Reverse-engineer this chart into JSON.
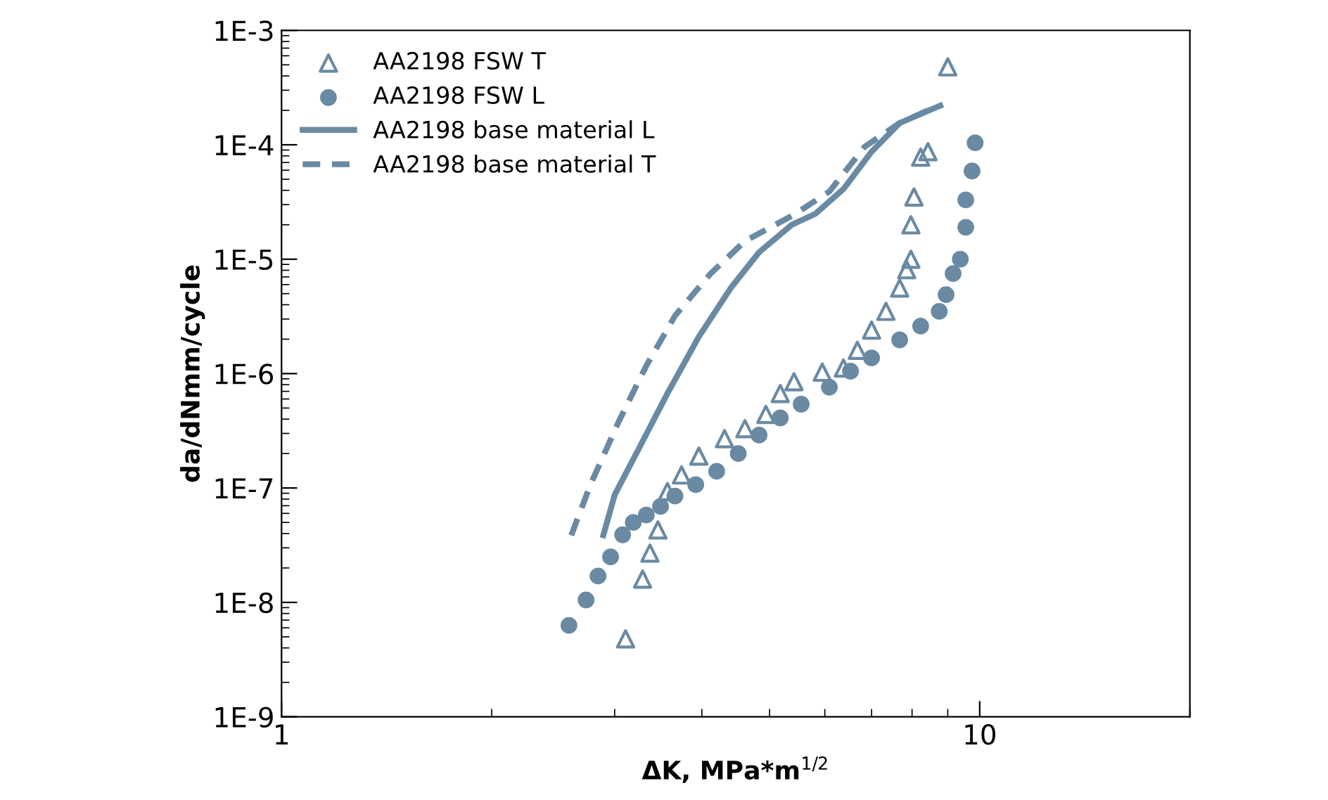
{
  "chart_data": {
    "type": "scatter",
    "xlabel": "ΔK, MPa*m$^{1/2}$",
    "ylabel": "da/dNmm/cycle",
    "log": "xy",
    "grid": false,
    "legend": "top left",
    "xlim": [
      1,
      20
    ],
    "xticks": [
      1,
      10
    ],
    "ylim": [
      1e-09,
      0.001
    ],
    "yticks": [
      {
        "value": 1e-09,
        "label": "1E-9"
      },
      {
        "value": 1e-08,
        "label": "1E-8"
      },
      {
        "value": 1e-07,
        "label": "1E-7"
      },
      {
        "value": 1e-06,
        "label": "1E-6"
      },
      {
        "value": 1e-05,
        "label": "1E-5"
      },
      {
        "value": 0.0001,
        "label": "1E-4"
      },
      {
        "value": 0.001,
        "label": "1E-3"
      }
    ],
    "series": [
      {
        "name": "AA2198 FSW T",
        "marker": "triangle",
        "color": "#6a8aa3",
        "x": [
          3.11,
          3.29,
          3.37,
          3.46,
          3.57,
          3.74,
          3.96,
          4.31,
          4.61,
          4.94,
          5.18,
          5.42,
          5.95,
          6.38,
          6.68,
          7.0,
          7.34,
          7.68,
          7.86,
          7.97,
          7.97,
          8.05,
          8.23,
          8.43,
          9.0
        ],
        "values": [
          4.8e-09,
          1.6e-08,
          2.7e-08,
          4.3e-08,
          9.3e-08,
          1.3e-07,
          1.9e-07,
          2.7e-07,
          3.3e-07,
          4.4e-07,
          6.7e-07,
          8.5e-07,
          1.03e-06,
          1.12e-06,
          1.6e-06,
          2.4e-06,
          3.5e-06,
          5.6e-06,
          8.1e-06,
          1e-05,
          2e-05,
          3.5e-05,
          7.8e-05,
          8.7e-05,
          0.00048
        ]
      },
      {
        "name": "AA2198 FSW L",
        "marker": "circle",
        "color": "#6a8aa3",
        "x": [
          2.58,
          2.73,
          2.84,
          2.96,
          3.08,
          3.19,
          3.33,
          3.49,
          3.66,
          3.92,
          4.2,
          4.51,
          4.83,
          5.18,
          5.55,
          6.09,
          6.53,
          7.0,
          7.68,
          8.23,
          8.75,
          8.95,
          9.16,
          9.38,
          9.55,
          9.55,
          9.75,
          9.85
        ],
        "values": [
          6.3e-09,
          1.05e-08,
          1.7e-08,
          2.5e-08,
          3.9e-08,
          5e-08,
          5.8e-08,
          6.9e-08,
          8.5e-08,
          1.07e-07,
          1.4e-07,
          2e-07,
          2.9e-07,
          4.1e-07,
          5.4e-07,
          7.6e-07,
          1.05e-06,
          1.37e-06,
          1.97e-06,
          2.6e-06,
          3.5e-06,
          4.9e-06,
          7.5e-06,
          1e-05,
          1.9e-05,
          3.3e-05,
          5.9e-05,
          0.000104
        ]
      },
      {
        "name": "AA2198 base material L",
        "type": "line",
        "line_style": "solid",
        "color": "#6a8aa3",
        "x": [
          2.89,
          3.0,
          3.26,
          3.57,
          3.96,
          4.4,
          4.83,
          5.38,
          5.82,
          6.38,
          7.0,
          7.68,
          8.78
        ],
        "values": [
          3.86e-08,
          8.7e-08,
          2.3e-07,
          6.7e-07,
          2.1e-06,
          5.6e-06,
          1.15e-05,
          2e-05,
          2.5e-05,
          4.1e-05,
          8.7e-05,
          0.000155,
          0.00022
        ]
      },
      {
        "name": "AA2198 base material T",
        "type": "line",
        "line_style": "dashed",
        "color": "#6a8aa3",
        "x": [
          2.6,
          2.77,
          3.04,
          3.33,
          3.66,
          4.11,
          4.61,
          5.42,
          6.09,
          6.84,
          7.68,
          8.43
        ],
        "values": [
          3.86e-08,
          1.07e-07,
          3.8e-07,
          1.17e-06,
          3.2e-06,
          7.4e-06,
          1.44e-05,
          2.45e-05,
          3.9e-05,
          9.6e-05,
          0.000155,
          0.0002
        ]
      }
    ]
  }
}
